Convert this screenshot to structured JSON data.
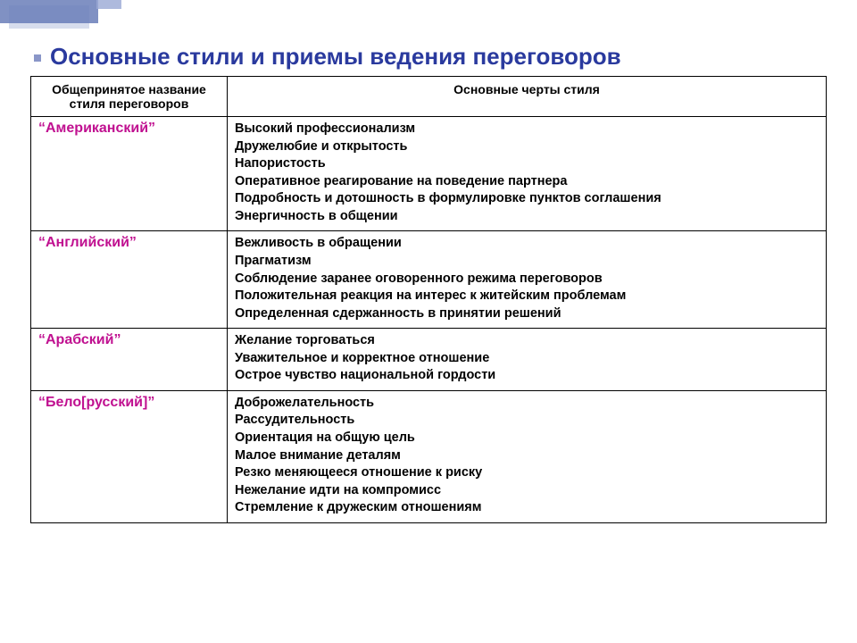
{
  "title": "Основные стили и приемы ведения переговоров",
  "table": {
    "columns": [
      "Общепринятое название стиля переговоров",
      "Основные черты стиля"
    ],
    "rows": [
      {
        "name": "“Американский”",
        "features": [
          "Высокий профессионализм",
          "Дружелюбие и открытость",
          "Напористость",
          "Оперативное реагирование на поведение партнера",
          "Подробность и дотошность в формулировке пунктов соглашения",
          "Энергичность в общении"
        ]
      },
      {
        "name": "“Английский”",
        "features": [
          "Вежливость в обращении",
          "Прагматизм",
          "Соблюдение заранее оговоренного режима переговоров",
          "Положительная реакция на интерес к житейским проблемам",
          "Определенная сдержанность в принятии решений"
        ]
      },
      {
        "name": "“Арабский”",
        "features": [
          "Желание торговаться",
          "Уважительное и корректное отношение",
          "Острое чувство национальной гордости"
        ]
      },
      {
        "name": "“Бело[русский]”",
        "features": [
          "Доброжелательность",
          "Рассудительность",
          "Ориентация на общую цель",
          "Малое внимание деталям",
          "Резко меняющееся отношение к риску",
          "Нежелание идти на компромисс",
          "Стремление к дружеским отношениям"
        ]
      }
    ]
  },
  "colors": {
    "title": "#2a3a9e",
    "style_name": "#c01090",
    "border": "#000000",
    "deco_a": "#6a7eb8",
    "deco_b": "#c6cee6",
    "deco_c": "#9aa9d4"
  }
}
